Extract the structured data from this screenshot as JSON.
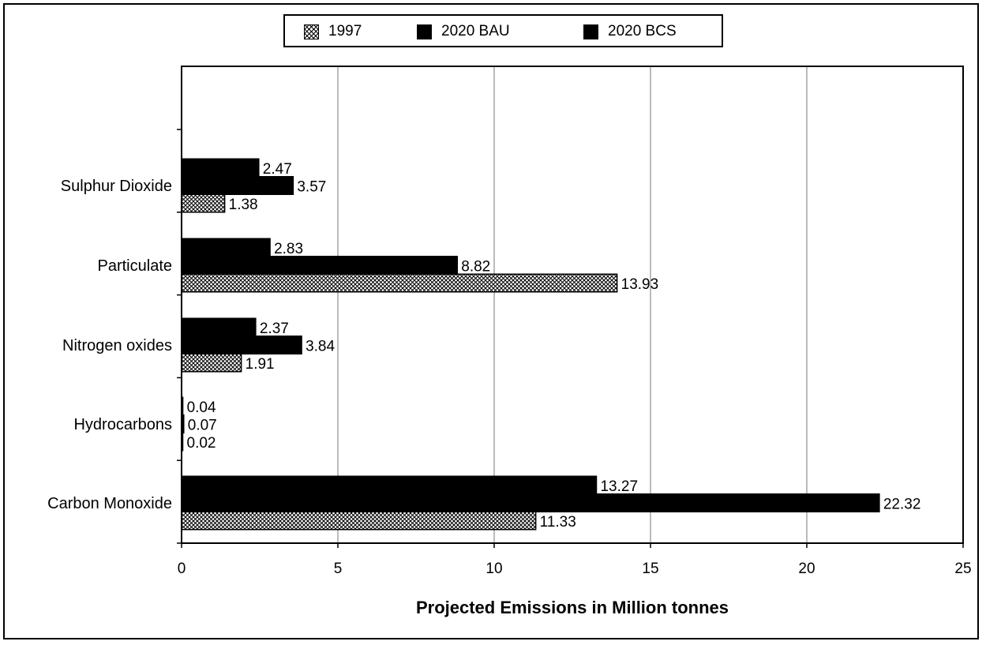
{
  "legend": {
    "items": [
      {
        "label": "1997",
        "pattern": "hatch"
      },
      {
        "label": "2020 BAU",
        "pattern": "solid"
      },
      {
        "label": "2020 BCS",
        "pattern": "solid"
      }
    ]
  },
  "chart_data": {
    "type": "bar",
    "orientation": "horizontal",
    "title": "",
    "xlabel": "Projected Emissions in Million tonnes",
    "ylabel": "",
    "xlim": [
      0,
      25
    ],
    "xticks": [
      0,
      5,
      10,
      15,
      20,
      25
    ],
    "grid": "vertical",
    "legend_position": "top",
    "categories": [
      "Sulphur Dioxide",
      "Particulate",
      "Nitrogen oxides",
      "Hydrocarbons",
      "Carbon Monoxide"
    ],
    "series": [
      {
        "name": "1997",
        "values": [
          1.38,
          13.93,
          1.91,
          0.02,
          11.33
        ],
        "labels": [
          "1.38",
          "13.93",
          "1.91",
          "0.02",
          "11.33"
        ],
        "fill": "hatch"
      },
      {
        "name": "2020 BAU",
        "values": [
          3.57,
          8.82,
          3.84,
          0.07,
          22.32
        ],
        "labels": [
          "3.57",
          "8.82",
          "3.84",
          "0.07",
          "22.32"
        ],
        "fill": "#000000"
      },
      {
        "name": "2020 BCS",
        "values": [
          2.47,
          2.83,
          2.37,
          0.04,
          13.27
        ],
        "labels": [
          "2.47",
          "2.83",
          "2.37",
          "0.04",
          "13.27"
        ],
        "fill": "#000000"
      }
    ]
  }
}
